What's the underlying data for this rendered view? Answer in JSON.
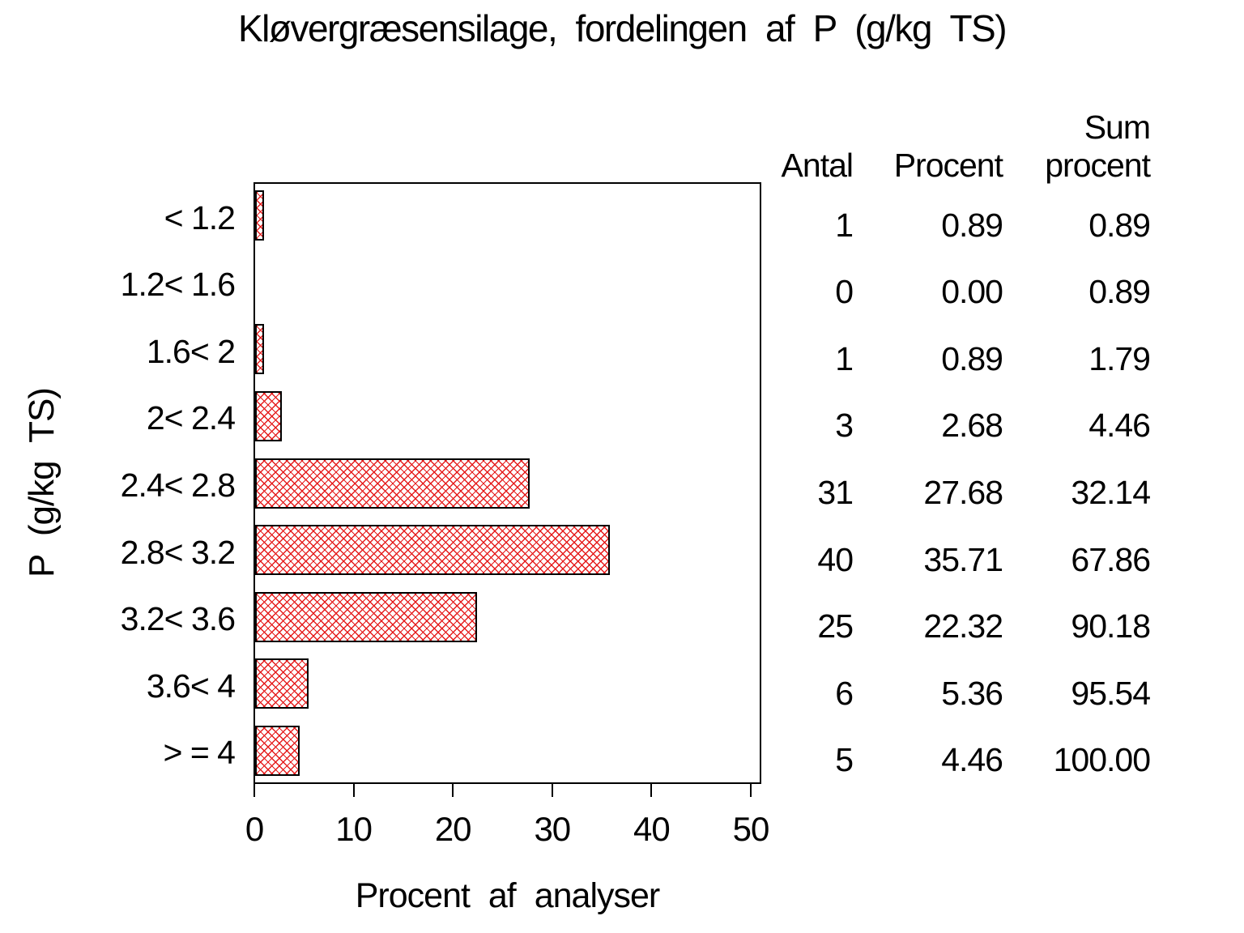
{
  "chart_data": {
    "type": "bar",
    "orientation": "horizontal",
    "title": "Kløvergræsensilage, fordelingen af P (g/kg TS)",
    "xlabel": "Procent af analyser",
    "ylabel": "P (g/kg TS)",
    "categories": [
      "< 1.2",
      "1.2< 1.6",
      "1.6< 2",
      "2< 2.4",
      "2.4< 2.8",
      "2.8< 3.2",
      "3.2< 3.6",
      "3.6< 4",
      "> = 4"
    ],
    "values": [
      0.89,
      0.0,
      0.89,
      2.68,
      27.68,
      35.71,
      22.32,
      5.36,
      4.46
    ],
    "counts": [
      1,
      0,
      1,
      3,
      31,
      40,
      25,
      6,
      5
    ],
    "cum_percents": [
      0.89,
      0.89,
      1.79,
      4.46,
      32.14,
      67.86,
      90.18,
      95.54,
      100.0
    ],
    "xticks": [
      "0",
      "10",
      "20",
      "30",
      "40",
      "50"
    ],
    "xlim": [
      0,
      51
    ],
    "grid": false,
    "legend": "none",
    "bar_fill": "crosshatch",
    "bar_color": "#e51c1c",
    "bar_border_color": "#000000",
    "frame_color": "#000000",
    "background_color": "#ffffff"
  },
  "stats_table": {
    "header_antal": "Antal",
    "header_procent": "Procent",
    "header_sum_line1": "Sum",
    "header_sum_line2": "procent",
    "rows": [
      {
        "antal": "1",
        "procent": "0.89",
        "sum": "0.89"
      },
      {
        "antal": "0",
        "procent": "0.00",
        "sum": "0.89"
      },
      {
        "antal": "1",
        "procent": "0.89",
        "sum": "1.79"
      },
      {
        "antal": "3",
        "procent": "2.68",
        "sum": "4.46"
      },
      {
        "antal": "31",
        "procent": "27.68",
        "sum": "32.14"
      },
      {
        "antal": "40",
        "procent": "35.71",
        "sum": "67.86"
      },
      {
        "antal": "25",
        "procent": "22.32",
        "sum": "90.18"
      },
      {
        "antal": "6",
        "procent": "5.36",
        "sum": "95.54"
      },
      {
        "antal": "5",
        "procent": "4.46",
        "sum": "100.00"
      }
    ]
  }
}
